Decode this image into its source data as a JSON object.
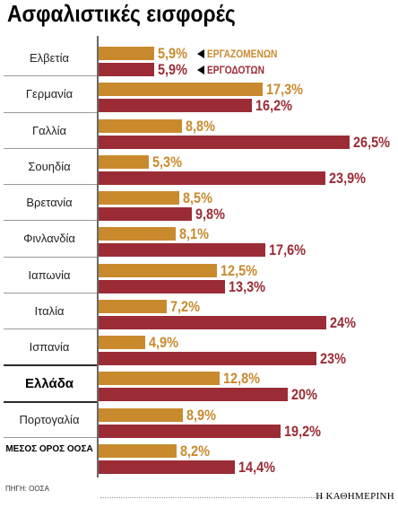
{
  "chart_data": {
    "type": "bar",
    "orientation": "horizontal",
    "title": "Ασφαλιστικές εισφορές",
    "categories": [
      "Ελβετία",
      "Γερμανία",
      "Γαλλία",
      "Σουηδία",
      "Βρετανία",
      "Φινλανδία",
      "Ιαπωνία",
      "Ιταλία",
      "Ισπανία",
      "Ελλάδα",
      "Πορτογαλία",
      "ΜΕΣΟΣ ΟΡΟΣ ΟΟΣΑ"
    ],
    "series": [
      {
        "name": "ΕΡΓΑΖΟΜΕΝΩΝ",
        "color": "#C98A2E",
        "values": [
          5.9,
          17.3,
          8.8,
          5.3,
          8.5,
          8.1,
          12.5,
          7.2,
          4.9,
          12.8,
          8.9,
          8.2
        ],
        "labels": [
          "5,9%",
          "17,3%",
          "8,8%",
          "5,3%",
          "8,5%",
          "8,1%",
          "12,5%",
          "7,2%",
          "4,9%",
          "12,8%",
          "8,9%",
          "8,2%"
        ]
      },
      {
        "name": "ΕΡΓΟΔΟΤΩΝ",
        "color": "#9B2C35",
        "values": [
          5.9,
          16.2,
          26.5,
          23.9,
          9.8,
          17.6,
          13.3,
          24,
          23,
          20,
          19.2,
          14.4
        ],
        "labels": [
          "5,9%",
          "16,2%",
          "26,5%",
          "23,9%",
          "9,8%",
          "17,6%",
          "13,3%",
          "24%",
          "23%",
          "20%",
          "19,2%",
          "14,4%"
        ]
      }
    ],
    "unit": "%",
    "legend_position": "top"
  },
  "source": "ΠΗΓΗ: ΟΟΣΑ",
  "publisher": "Η ΚΑΘΗΜΕΡΙΝΗ"
}
